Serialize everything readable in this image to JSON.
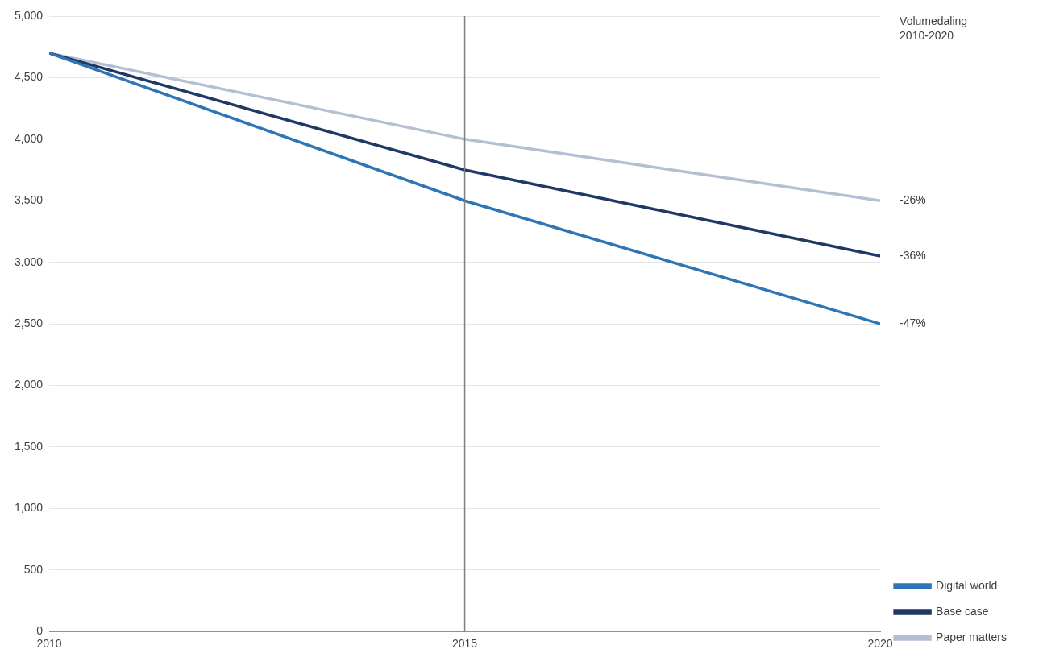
{
  "chart_data": {
    "type": "line",
    "x": [
      2010,
      2015,
      2020
    ],
    "series": [
      {
        "name": "Paper matters",
        "color": "#b4bfd4",
        "values": [
          4700,
          4000,
          3500
        ]
      },
      {
        "name": "Base case",
        "color": "#1f3864",
        "values": [
          4700,
          3750,
          3050
        ]
      },
      {
        "name": "Digital world",
        "color": "#2e75b6",
        "values": [
          4700,
          3500,
          2500
        ]
      }
    ],
    "xlim": [
      2010,
      2020
    ],
    "xticks": [
      2010,
      2015,
      2020
    ],
    "ylim": [
      0,
      5000
    ],
    "yticks": [
      0,
      500,
      {
        "value": 1000,
        "label": "1,000"
      },
      {
        "value": 1500,
        "label": "1,500"
      },
      {
        "value": 2000,
        "label": "2,000"
      },
      {
        "value": 2500,
        "label": "2,500"
      },
      {
        "value": 3000,
        "label": "3,000"
      },
      {
        "value": 3500,
        "label": "3,500"
      },
      {
        "value": 4000,
        "label": "4,000"
      },
      {
        "value": 4500,
        "label": "4,500"
      },
      {
        "value": 5000,
        "label": "5,000"
      }
    ],
    "grid": "y",
    "legend": "right",
    "vline": {
      "x": 2015,
      "color": "#808080"
    },
    "annotations_title": "Volumedaling\n2010-2020",
    "annotations": [
      {
        "text": "-26%",
        "y": 3500
      },
      {
        "text": "-36%",
        "y": 3050
      },
      {
        "text": "-47%",
        "y": 2500
      }
    ]
  }
}
